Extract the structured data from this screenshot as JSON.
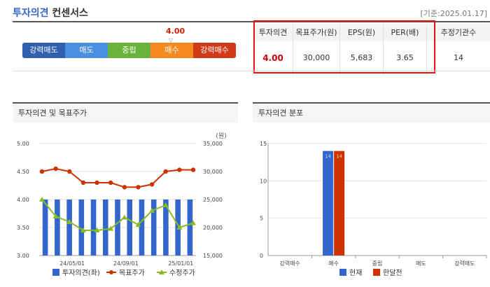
{
  "header": {
    "title_main": "투자의견",
    "title_sub": "컨센서스",
    "date": "[기준:2025.01.17]"
  },
  "scale": {
    "value": "4.00",
    "marker_level": 4.0,
    "segments": [
      {
        "label": "강력매도",
        "color": "#2f5fae"
      },
      {
        "label": "매도",
        "color": "#4a90e0"
      },
      {
        "label": "중립",
        "color": "#69b33a"
      },
      {
        "label": "매수",
        "color": "#f58a1f"
      },
      {
        "label": "강력매수",
        "color": "#d23a17"
      }
    ]
  },
  "table": {
    "headers": [
      "투자의견",
      "목표주가(원)",
      "EPS(원)",
      "PER(배)",
      "추정기관수"
    ],
    "values": [
      "4.00",
      "30,000",
      "5,683",
      "3.65",
      "14"
    ]
  },
  "left_panel": {
    "title": "투자의견 및 목표주가"
  },
  "right_panel": {
    "title": "투자의견 분포"
  },
  "chart_left": {
    "type": "bar",
    "unit_label": "(원)",
    "x_tick_labels": [
      "24/05/01",
      "24/09/01",
      "25/01/01"
    ],
    "y_left_ticks": [
      "5.00",
      "4.50",
      "4.00",
      "3.50",
      "3.00"
    ],
    "y_right_ticks": [
      "35,000",
      "30,000",
      "25,000",
      "20,000",
      "15,000"
    ],
    "ylim_left": [
      3.0,
      5.0
    ],
    "ylim_right": [
      15000,
      35000
    ],
    "legend": [
      "투자의견(좌)",
      "목표주가",
      "수정주가"
    ],
    "colors": {
      "bar": "#3366cc",
      "target": "#cc3300",
      "price": "#88bb22"
    },
    "opinion": [
      4.0,
      4.0,
      4.0,
      4.0,
      4.0,
      4.0,
      4.0,
      4.0,
      4.0,
      4.0,
      4.0,
      4.0,
      4.0
    ],
    "target_price": [
      30000,
      30500,
      30000,
      28000,
      28000,
      28000,
      27200,
      27200,
      27700,
      30000,
      30300,
      30300
    ],
    "adjusted_price": [
      25000,
      22000,
      21000,
      19500,
      19500,
      19800,
      21800,
      20500,
      23000,
      24000,
      20000,
      20800
    ]
  },
  "chart_right": {
    "type": "bar",
    "categories": [
      "강력매수",
      "매수",
      "중립",
      "매도",
      "강력매도"
    ],
    "y_ticks": [
      "15",
      "10",
      "5",
      "0"
    ],
    "ylim": [
      0,
      15
    ],
    "series": [
      {
        "name": "현재",
        "color": "#3366cc",
        "values": [
          0,
          14,
          0,
          0,
          0
        ],
        "label": "14"
      },
      {
        "name": "한달전",
        "color": "#cc3300",
        "values": [
          0,
          14,
          0,
          0,
          0
        ],
        "label": "14"
      }
    ]
  }
}
